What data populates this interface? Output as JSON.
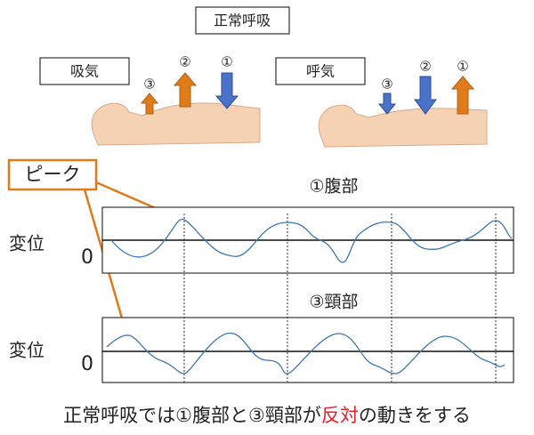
{
  "title": "正常呼吸",
  "inhale": {
    "label": "吸気",
    "arrows": [
      "③",
      "②",
      "①"
    ]
  },
  "exhale": {
    "label": "呼気",
    "arrows": [
      "③",
      "②",
      "①"
    ]
  },
  "peak": "ピーク",
  "charts": [
    {
      "title": "①腹部",
      "ylabel": "変位",
      "zero": "0"
    },
    {
      "title": "③頸部",
      "ylabel": "変位",
      "zero": "0"
    }
  ],
  "caption": {
    "before": "正常呼吸では①腹部と③頸部が",
    "highlight": "反対",
    "after": "の動きをする"
  }
}
